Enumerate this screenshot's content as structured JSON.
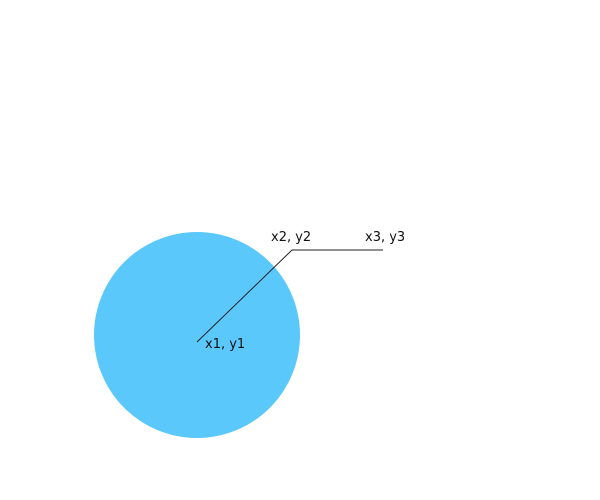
{
  "diagram": {
    "colors": {
      "circle_fill": "#5bc8fc",
      "line_stroke": "#222222"
    },
    "labels": {
      "p1": "x1, y1",
      "p2": "x2, y2",
      "p3": "x3, y3"
    }
  }
}
